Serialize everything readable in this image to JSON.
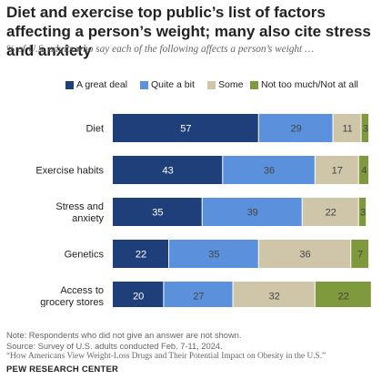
{
  "title": "Diet and exercise top public’s list of factors affecting a person’s weight; many also cite stress and anxiety",
  "subtitle": "% of U.S. adults who say each of the following affects a person’s weight …",
  "colors": {
    "great_deal": "#1f3f7a",
    "quite_bit": "#5b91dc",
    "some": "#cfc6aa",
    "not_much": "#7e9a3c",
    "label_light": "#ffffff",
    "label_dark": "#444444"
  },
  "chart_data": {
    "type": "bar",
    "orientation": "horizontal",
    "stacked": true,
    "categories": [
      "Diet",
      "Exercise habits",
      "Stress and anxiety",
      "Genetics",
      "Access to grocery stores"
    ],
    "category_lines": [
      [
        "Diet"
      ],
      [
        "Exercise habits"
      ],
      [
        "Stress and",
        "anxiety"
      ],
      [
        "Genetics"
      ],
      [
        "Access to",
        "grocery stores"
      ]
    ],
    "series": [
      {
        "name": "A great deal",
        "values": [
          57,
          43,
          35,
          22,
          20
        ]
      },
      {
        "name": "Quite a bit",
        "values": [
          29,
          36,
          39,
          35,
          27
        ]
      },
      {
        "name": "Some",
        "values": [
          11,
          17,
          22,
          36,
          32
        ]
      },
      {
        "name": "Not too much/Not at all",
        "values": [
          3,
          4,
          3,
          7,
          22
        ]
      }
    ],
    "xlim": [
      0,
      100
    ],
    "legend_position": "top",
    "grid": false
  },
  "notes": {
    "note": "Note: Respondents who did not give an answer are not shown.",
    "source": "Source: Survey of U.S. adults conducted Feb. 7-11, 2024.",
    "report": "“How Americans View Weight-Loss Drugs and Their Potential Impact on Obesity in the U.S.”"
  },
  "brand": "PEW RESEARCH CENTER"
}
